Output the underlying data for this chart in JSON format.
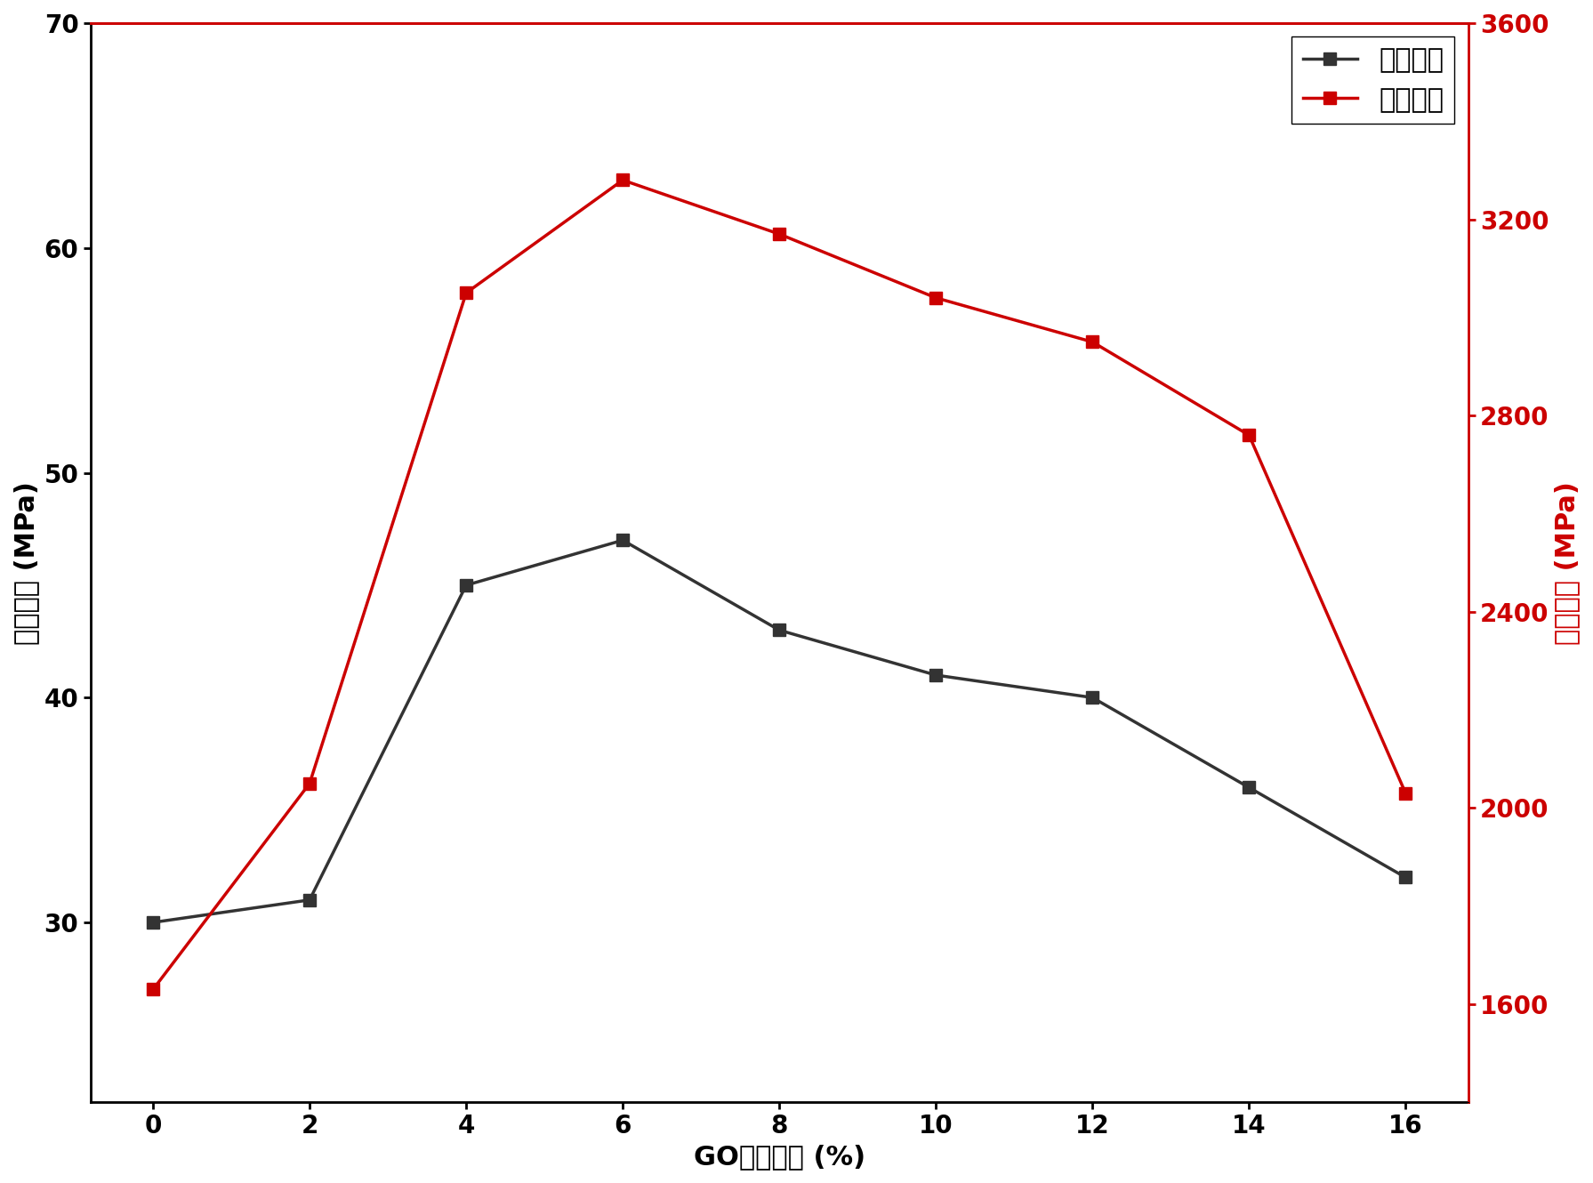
{
  "x": [
    0,
    2,
    4,
    6,
    8,
    10,
    12,
    14,
    16
  ],
  "bending_strength": [
    30,
    31,
    45,
    47,
    43,
    41,
    40,
    36,
    32
  ],
  "bending_modulus": [
    1630,
    2050,
    3050,
    3280,
    3170,
    3040,
    2950,
    2760,
    2030
  ],
  "xlabel": "GO质量分数 (%)",
  "ylabel_left": "弯曲强度 (MPa)",
  "ylabel_right": "弯曲模量 (MPa)",
  "legend_strength": "弯曲强度",
  "legend_modulus": "弯曲模量",
  "color_strength": "#333333",
  "color_modulus": "#cc0000",
  "ylim_left": [
    22,
    70
  ],
  "ylim_right": [
    1400,
    3600
  ],
  "yticks_left": [
    30,
    40,
    50,
    60,
    70
  ],
  "yticks_right": [
    1600,
    2000,
    2400,
    2800,
    3200,
    3600
  ],
  "xticks": [
    0,
    2,
    4,
    6,
    8,
    10,
    12,
    14,
    16
  ],
  "linewidth": 2.5,
  "markersize": 10,
  "xlabel_fontsize": 22,
  "ylabel_fontsize": 22,
  "tick_fontsize": 20,
  "legend_fontsize": 22
}
